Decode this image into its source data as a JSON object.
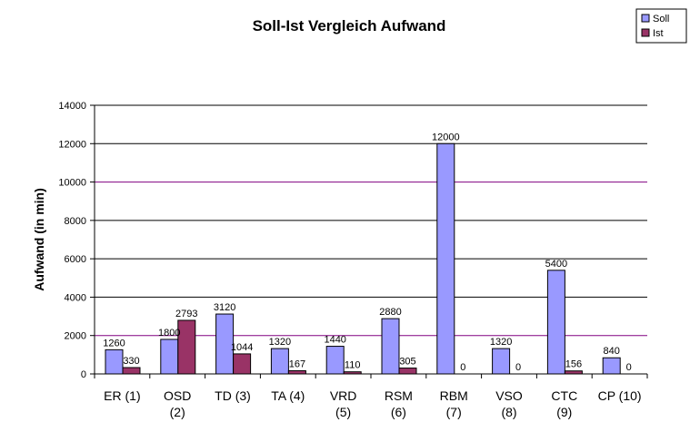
{
  "chart_data": {
    "type": "bar",
    "title": "Soll-Ist Vergleich Aufwand",
    "ylabel": "Aufwand (in min)",
    "xlabel": "",
    "ylim": [
      0,
      14000
    ],
    "yticks": [
      0,
      2000,
      4000,
      6000,
      8000,
      10000,
      12000,
      14000
    ],
    "grid": true,
    "legend_position": "top-right",
    "categories": [
      [
        "ER (1)"
      ],
      [
        "OSD",
        "(2)"
      ],
      [
        "TD (3)"
      ],
      [
        "TA (4)"
      ],
      [
        "VRD",
        "(5)"
      ],
      [
        "RSM",
        "(6)"
      ],
      [
        "RBM",
        "(7)"
      ],
      [
        "VSO",
        "(8)"
      ],
      [
        "CTC",
        "(9)"
      ],
      [
        "CP (10)"
      ]
    ],
    "series": [
      {
        "name": "Soll",
        "color": "#9999ff",
        "values": [
          1260,
          1800,
          3120,
          1320,
          1440,
          2880,
          12000,
          1320,
          5400,
          840
        ]
      },
      {
        "name": "Ist",
        "color": "#993366",
        "values": [
          330,
          2793,
          1044,
          167,
          110,
          305,
          0,
          0,
          156,
          0
        ]
      }
    ]
  }
}
